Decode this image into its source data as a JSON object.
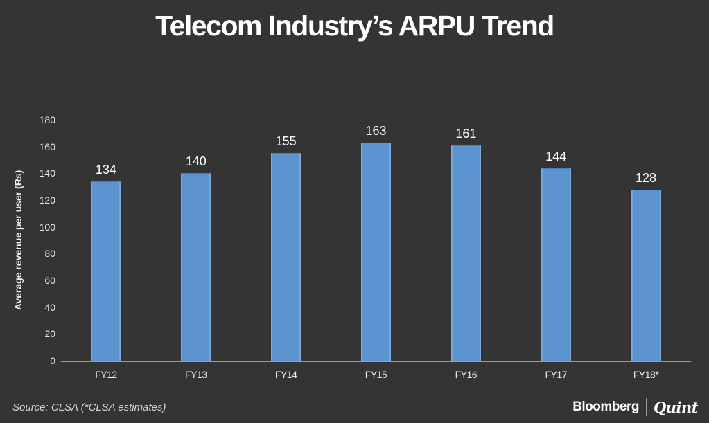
{
  "title": "Telecom Industry’s ARPU Trend",
  "chart_data": {
    "type": "bar",
    "categories": [
      "FY12",
      "FY13",
      "FY14",
      "FY15",
      "FY16",
      "FY17",
      "FY18*"
    ],
    "values": [
      134,
      140,
      155,
      163,
      161,
      144,
      128
    ],
    "title": "Telecom Industry’s ARPU Trend",
    "xlabel": "",
    "ylabel": "Average revenue per user (Rs)",
    "ylim": [
      0,
      180
    ],
    "ytick_step": 20,
    "yticks": [
      0,
      20,
      40,
      60,
      80,
      100,
      120,
      140,
      160,
      180
    ],
    "grid": false,
    "legend": null,
    "value_labels": true,
    "colors": {
      "background": "#343434",
      "bar": "#5b94ce",
      "bar_edge": "#79a7d9",
      "axis_line": "#9d9d9d",
      "text": "#ffffff",
      "tick_text": "#e8e8e8"
    }
  },
  "footer": {
    "source": "Source: CLSA (*CLSA estimates)",
    "brand": {
      "bloomberg": "Bloomberg",
      "separator": "|",
      "quint": "Quint"
    }
  }
}
